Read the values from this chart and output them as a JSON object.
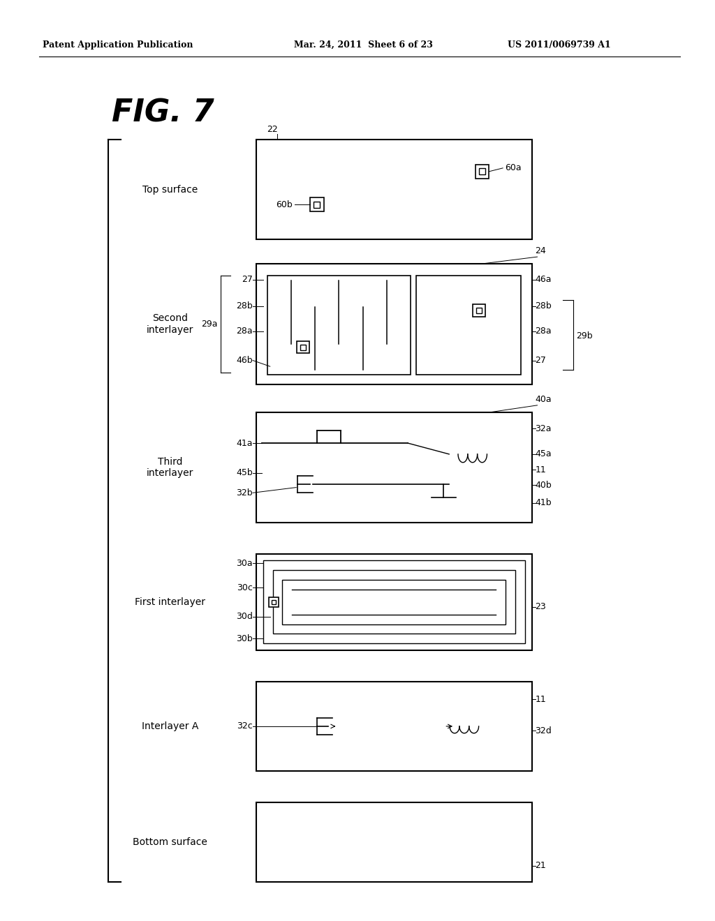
{
  "bg_color": "#ffffff",
  "header_left": "Patent Application Publication",
  "header_mid": "Mar. 24, 2011  Sheet 6 of 23",
  "header_right": "US 2011/0069739 A1",
  "fig_title": "FIG. 7"
}
